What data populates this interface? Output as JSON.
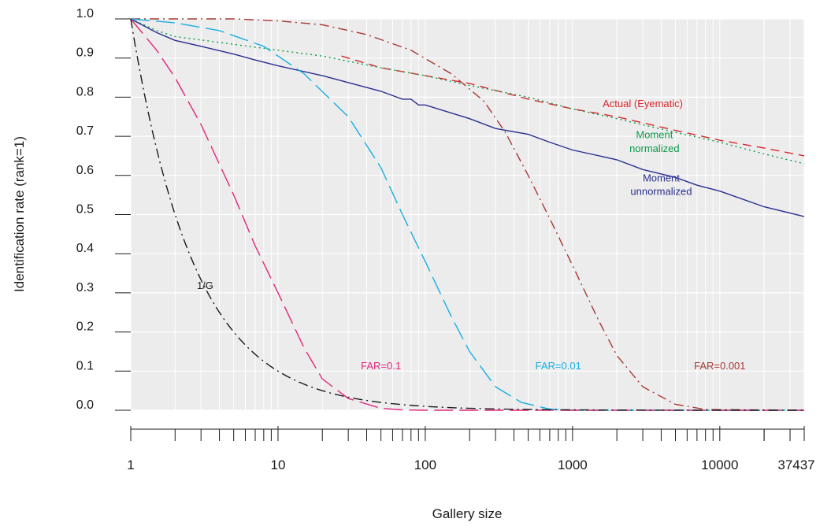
{
  "chart_data": {
    "type": "line",
    "xlabel": "Gallery size",
    "ylabel": "Identification rate (rank=1)",
    "xscale": "log",
    "xlim": [
      1,
      37437
    ],
    "ylim": [
      0,
      1
    ],
    "grid": true,
    "x_tick_labels": [
      "1",
      "10",
      "100",
      "1000",
      "10000",
      "37437"
    ],
    "y_tick_labels": [
      "0.0",
      "0.1",
      "0.2",
      "0.3",
      "0.4",
      "0.5",
      "0.6",
      "0.7",
      "0.8",
      "0.9",
      "1.0"
    ],
    "series": [
      {
        "name": "Actual (Eyematic)",
        "color": "#d7282f",
        "dash": "dashed",
        "points": [
          [
            27,
            0.905
          ],
          [
            50,
            0.875
          ],
          [
            100,
            0.855
          ],
          [
            200,
            0.835
          ],
          [
            500,
            0.795
          ],
          [
            1000,
            0.77
          ],
          [
            2000,
            0.75
          ],
          [
            5000,
            0.715
          ],
          [
            10000,
            0.69
          ],
          [
            20000,
            0.67
          ],
          [
            37437,
            0.65
          ]
        ]
      },
      {
        "name": "Moment normalized",
        "color": "#0a9a48",
        "dash": "dotted",
        "points": [
          [
            1,
            1.0
          ],
          [
            1.5,
            0.97
          ],
          [
            2,
            0.955
          ],
          [
            5,
            0.935
          ],
          [
            10,
            0.92
          ],
          [
            20,
            0.905
          ],
          [
            50,
            0.875
          ],
          [
            100,
            0.855
          ],
          [
            200,
            0.83
          ],
          [
            500,
            0.8
          ],
          [
            1000,
            0.77
          ],
          [
            2000,
            0.745
          ],
          [
            5000,
            0.71
          ],
          [
            10000,
            0.685
          ],
          [
            20000,
            0.655
          ],
          [
            37437,
            0.63
          ]
        ]
      },
      {
        "name": "Moment unnormalized",
        "color": "#2a2f8f",
        "dash": "solid",
        "points": [
          [
            1,
            1.0
          ],
          [
            1.5,
            0.965
          ],
          [
            2,
            0.945
          ],
          [
            3,
            0.93
          ],
          [
            5,
            0.91
          ],
          [
            7,
            0.895
          ],
          [
            10,
            0.88
          ],
          [
            20,
            0.855
          ],
          [
            50,
            0.815
          ],
          [
            70,
            0.795
          ],
          [
            80,
            0.795
          ],
          [
            90,
            0.78
          ],
          [
            100,
            0.78
          ],
          [
            200,
            0.745
          ],
          [
            300,
            0.72
          ],
          [
            500,
            0.705
          ],
          [
            700,
            0.685
          ],
          [
            1000,
            0.665
          ],
          [
            2000,
            0.64
          ],
          [
            3000,
            0.615
          ],
          [
            5000,
            0.595
          ],
          [
            7000,
            0.575
          ],
          [
            10000,
            0.56
          ],
          [
            20000,
            0.52
          ],
          [
            37437,
            0.495
          ]
        ]
      },
      {
        "name": "FAR=0.001",
        "color": "#a63a36",
        "dash": "dashdot",
        "points": [
          [
            1,
            1.0
          ],
          [
            5,
            1.0
          ],
          [
            10,
            0.995
          ],
          [
            20,
            0.985
          ],
          [
            40,
            0.96
          ],
          [
            80,
            0.92
          ],
          [
            150,
            0.86
          ],
          [
            250,
            0.79
          ],
          [
            350,
            0.71
          ],
          [
            500,
            0.6
          ],
          [
            700,
            0.49
          ],
          [
            1000,
            0.37
          ],
          [
            1500,
            0.23
          ],
          [
            2000,
            0.14
          ],
          [
            3000,
            0.06
          ],
          [
            5000,
            0.015
          ],
          [
            8000,
            0.002
          ],
          [
            37437,
            0.0
          ]
        ]
      },
      {
        "name": "FAR=0.01",
        "color": "#18aee2",
        "dash": "longdash",
        "points": [
          [
            1,
            1.0
          ],
          [
            2,
            0.99
          ],
          [
            4,
            0.97
          ],
          [
            8,
            0.93
          ],
          [
            15,
            0.86
          ],
          [
            30,
            0.75
          ],
          [
            50,
            0.62
          ],
          [
            70,
            0.5
          ],
          [
            100,
            0.38
          ],
          [
            150,
            0.24
          ],
          [
            200,
            0.15
          ],
          [
            300,
            0.06
          ],
          [
            450,
            0.02
          ],
          [
            700,
            0.003
          ],
          [
            1000,
            0.0
          ],
          [
            37437,
            0.0
          ]
        ]
      },
      {
        "name": "FAR=0.1",
        "color": "#e0287c",
        "dash": "longdash",
        "points": [
          [
            1,
            1.0
          ],
          [
            1.5,
            0.92
          ],
          [
            2,
            0.85
          ],
          [
            3,
            0.73
          ],
          [
            5,
            0.55
          ],
          [
            7,
            0.42
          ],
          [
            10,
            0.3
          ],
          [
            15,
            0.16
          ],
          [
            20,
            0.08
          ],
          [
            30,
            0.03
          ],
          [
            50,
            0.005
          ],
          [
            70,
            0.001
          ],
          [
            100,
            0.0
          ],
          [
            37437,
            0.0
          ]
        ]
      },
      {
        "name": "1/G",
        "color": "#1a1a1a",
        "dash": "dashdot",
        "points": "reciprocal"
      }
    ],
    "annotations": [
      {
        "text": "Actual (Eyematic)",
        "x": 3000,
        "y": 0.775,
        "color": "#d7282f"
      },
      {
        "text": "Moment",
        "x": 3600,
        "y": 0.695,
        "color": "#0a9a48"
      },
      {
        "text": "normalized",
        "x": 3600,
        "y": 0.66,
        "color": "#0a9a48"
      },
      {
        "text": "Moment",
        "x": 4000,
        "y": 0.585,
        "color": "#2a2f8f"
      },
      {
        "text": "unnormalized",
        "x": 4000,
        "y": 0.55,
        "color": "#2a2f8f"
      },
      {
        "text": "1/G",
        "x": 3.2,
        "y": 0.31,
        "color": "#1a1a1a"
      },
      {
        "text": "FAR=0.1",
        "x": 50,
        "y": 0.105,
        "color": "#e0287c"
      },
      {
        "text": "FAR=0.01",
        "x": 800,
        "y": 0.105,
        "color": "#18aee2"
      },
      {
        "text": "FAR=0.001",
        "x": 10000,
        "y": 0.105,
        "color": "#a63a36"
      }
    ]
  }
}
